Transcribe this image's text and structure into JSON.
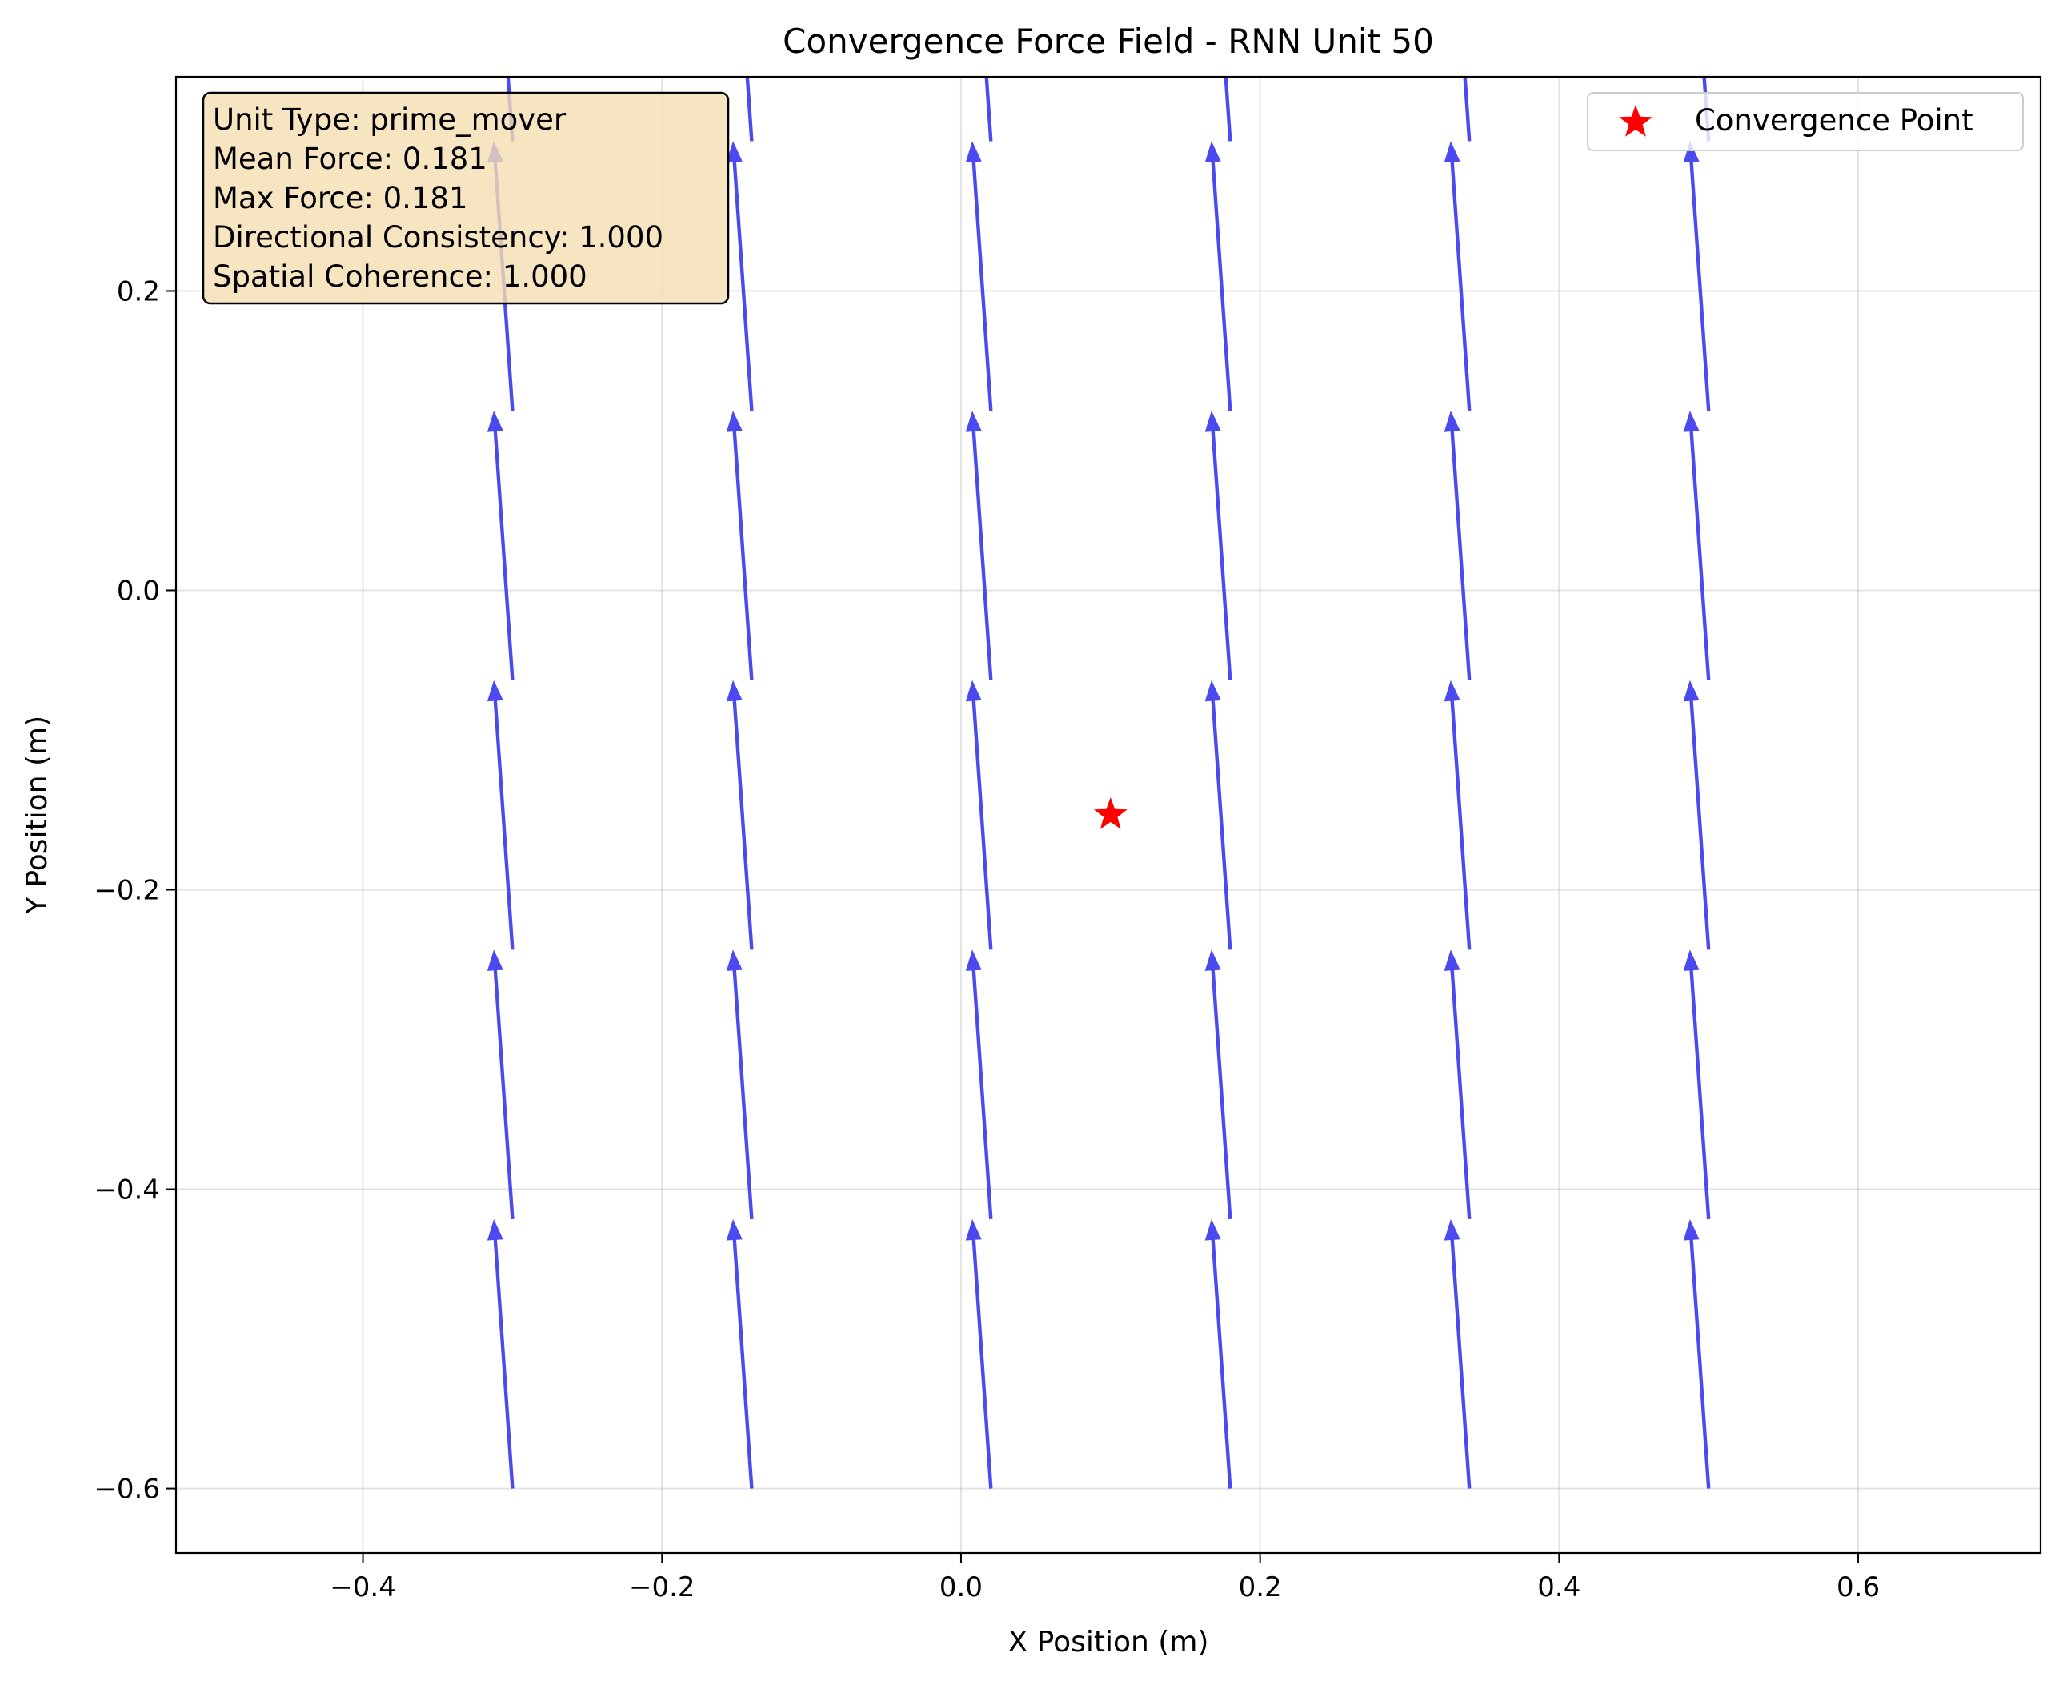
{
  "chart_data": {
    "type": "quiver",
    "title": "Convergence Force Field - RNN Unit 50",
    "xlabel": "X Position (m)",
    "ylabel": "Y Position (m)",
    "xlim": [
      -0.525,
      0.722
    ],
    "ylim": [
      -0.643,
      0.343
    ],
    "xticks": [
      -0.4,
      -0.2,
      0.0,
      0.2,
      0.4,
      0.6
    ],
    "yticks": [
      -0.6,
      -0.4,
      -0.2,
      0.0,
      0.2
    ],
    "xtick_labels": [
      "−0.4",
      "−0.2",
      "0.0",
      "0.2",
      "0.4",
      "0.6"
    ],
    "ytick_labels": [
      "−0.6",
      "−0.4",
      "−0.2",
      "0.0",
      "0.2"
    ],
    "grid": true,
    "arrow_color": "#3b3bef",
    "grid_x": [
      -0.3,
      -0.14,
      0.02,
      0.18,
      0.34,
      0.5
    ],
    "grid_y": [
      -0.6,
      -0.42,
      -0.24,
      -0.06,
      0.12,
      0.3
    ],
    "arrow_vector": {
      "u": -0.0125,
      "v": 0.18
    },
    "convergence_point": {
      "x": 0.1,
      "y": -0.15,
      "color": "#ff0000",
      "marker": "star"
    },
    "legend": {
      "location": "upper right",
      "entries": [
        "Convergence Point"
      ]
    },
    "info_box": {
      "location": "upper left",
      "background": "#f5deb3",
      "lines": [
        "Unit Type: prime_mover",
        "Mean Force: 0.181",
        "Max Force: 0.181",
        "Directional Consistency: 1.000",
        "Spatial Coherence: 1.000"
      ]
    }
  }
}
